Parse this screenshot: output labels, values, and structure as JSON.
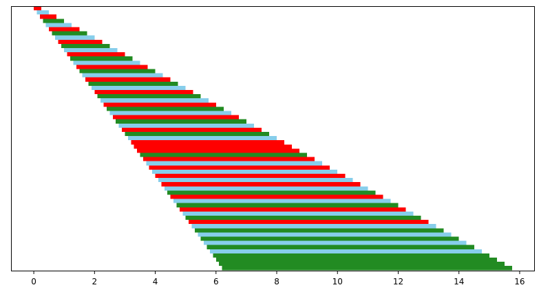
{
  "chart_data": {
    "type": "bar",
    "orientation": "horizontal",
    "stacked_order": "top-to-bottom",
    "title": "",
    "xlabel": "",
    "ylabel": "",
    "xlim": [
      -0.75,
      16.5
    ],
    "xticks": [
      0,
      2,
      4,
      6,
      8,
      10,
      12,
      14,
      16
    ],
    "grid": false,
    "legend": "none",
    "colors": {
      "red": "#ff0000",
      "skyblue": "#87ceeb",
      "green": "#228b22"
    },
    "bars": [
      {
        "start": 0.0,
        "end": 0.25,
        "color": "red"
      },
      {
        "start": 0.1,
        "end": 0.5,
        "color": "skyblue"
      },
      {
        "start": 0.2,
        "end": 0.75,
        "color": "red"
      },
      {
        "start": 0.3,
        "end": 1.0,
        "color": "green"
      },
      {
        "start": 0.4,
        "end": 1.25,
        "color": "skyblue"
      },
      {
        "start": 0.5,
        "end": 1.5,
        "color": "red"
      },
      {
        "start": 0.6,
        "end": 1.75,
        "color": "green"
      },
      {
        "start": 0.7,
        "end": 2.0,
        "color": "skyblue"
      },
      {
        "start": 0.8,
        "end": 2.25,
        "color": "red"
      },
      {
        "start": 0.9,
        "end": 2.5,
        "color": "green"
      },
      {
        "start": 1.0,
        "end": 2.75,
        "color": "skyblue"
      },
      {
        "start": 1.1,
        "end": 3.0,
        "color": "red"
      },
      {
        "start": 1.2,
        "end": 3.25,
        "color": "green"
      },
      {
        "start": 1.3,
        "end": 3.5,
        "color": "skyblue"
      },
      {
        "start": 1.4,
        "end": 3.75,
        "color": "red"
      },
      {
        "start": 1.5,
        "end": 4.0,
        "color": "green"
      },
      {
        "start": 1.6,
        "end": 4.25,
        "color": "skyblue"
      },
      {
        "start": 1.7,
        "end": 4.5,
        "color": "red"
      },
      {
        "start": 1.8,
        "end": 4.75,
        "color": "green"
      },
      {
        "start": 1.9,
        "end": 5.0,
        "color": "skyblue"
      },
      {
        "start": 2.0,
        "end": 5.25,
        "color": "red"
      },
      {
        "start": 2.1,
        "end": 5.5,
        "color": "green"
      },
      {
        "start": 2.2,
        "end": 5.75,
        "color": "skyblue"
      },
      {
        "start": 2.3,
        "end": 6.0,
        "color": "red"
      },
      {
        "start": 2.4,
        "end": 6.25,
        "color": "green"
      },
      {
        "start": 2.5,
        "end": 6.5,
        "color": "skyblue"
      },
      {
        "start": 2.6,
        "end": 6.75,
        "color": "red"
      },
      {
        "start": 2.7,
        "end": 7.0,
        "color": "green"
      },
      {
        "start": 2.8,
        "end": 7.25,
        "color": "skyblue"
      },
      {
        "start": 2.9,
        "end": 7.5,
        "color": "red"
      },
      {
        "start": 3.0,
        "end": 7.75,
        "color": "green"
      },
      {
        "start": 3.1,
        "end": 8.0,
        "color": "skyblue"
      },
      {
        "start": 3.2,
        "end": 8.25,
        "color": "red"
      },
      {
        "start": 3.3,
        "end": 8.5,
        "color": "red"
      },
      {
        "start": 3.4,
        "end": 8.75,
        "color": "red"
      },
      {
        "start": 3.5,
        "end": 9.0,
        "color": "green"
      },
      {
        "start": 3.6,
        "end": 9.25,
        "color": "red"
      },
      {
        "start": 3.7,
        "end": 9.5,
        "color": "skyblue"
      },
      {
        "start": 3.8,
        "end": 9.75,
        "color": "red"
      },
      {
        "start": 3.9,
        "end": 10.0,
        "color": "skyblue"
      },
      {
        "start": 4.0,
        "end": 10.25,
        "color": "red"
      },
      {
        "start": 4.1,
        "end": 10.5,
        "color": "skyblue"
      },
      {
        "start": 4.2,
        "end": 10.75,
        "color": "red"
      },
      {
        "start": 4.3,
        "end": 11.0,
        "color": "skyblue"
      },
      {
        "start": 4.4,
        "end": 11.25,
        "color": "green"
      },
      {
        "start": 4.5,
        "end": 11.5,
        "color": "red"
      },
      {
        "start": 4.6,
        "end": 11.75,
        "color": "skyblue"
      },
      {
        "start": 4.7,
        "end": 12.0,
        "color": "green"
      },
      {
        "start": 4.8,
        "end": 12.25,
        "color": "red"
      },
      {
        "start": 4.9,
        "end": 12.5,
        "color": "skyblue"
      },
      {
        "start": 5.0,
        "end": 12.75,
        "color": "green"
      },
      {
        "start": 5.1,
        "end": 13.0,
        "color": "red"
      },
      {
        "start": 5.2,
        "end": 13.25,
        "color": "skyblue"
      },
      {
        "start": 5.3,
        "end": 13.5,
        "color": "green"
      },
      {
        "start": 5.4,
        "end": 13.75,
        "color": "skyblue"
      },
      {
        "start": 5.5,
        "end": 14.0,
        "color": "green"
      },
      {
        "start": 5.6,
        "end": 14.25,
        "color": "skyblue"
      },
      {
        "start": 5.7,
        "end": 14.5,
        "color": "green"
      },
      {
        "start": 5.8,
        "end": 14.75,
        "color": "skyblue"
      },
      {
        "start": 5.9,
        "end": 15.0,
        "color": "green"
      },
      {
        "start": 6.0,
        "end": 15.25,
        "color": "green"
      },
      {
        "start": 6.1,
        "end": 15.5,
        "color": "green"
      },
      {
        "start": 6.2,
        "end": 15.75,
        "color": "green"
      }
    ]
  }
}
